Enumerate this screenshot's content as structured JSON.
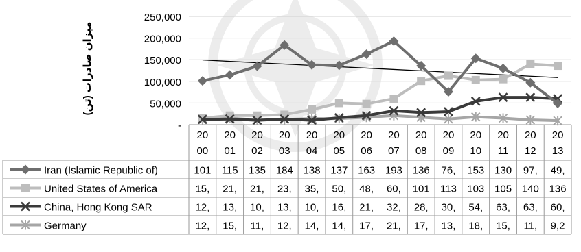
{
  "chart_data": {
    "type": "line",
    "ylabel": "میزان صادرات (تن)",
    "ylim": [
      0,
      250000
    ],
    "yticks": [
      "250,000",
      "200,000",
      "150,000",
      "100,000",
      "50,000",
      "-"
    ],
    "categories": [
      [
        "20",
        "00"
      ],
      [
        "20",
        "01"
      ],
      [
        "20",
        "02"
      ],
      [
        "20",
        "03"
      ],
      [
        "20",
        "04"
      ],
      [
        "20",
        "05"
      ],
      [
        "20",
        "06"
      ],
      [
        "20",
        "07"
      ],
      [
        "20",
        "08"
      ],
      [
        "20",
        "09"
      ],
      [
        "20",
        "10"
      ],
      [
        "20",
        "11"
      ],
      [
        "20",
        "12"
      ],
      [
        "20",
        "13"
      ]
    ],
    "years": [
      2000,
      2001,
      2002,
      2003,
      2004,
      2005,
      2006,
      2007,
      2008,
      2009,
      2010,
      2011,
      2012,
      2013
    ],
    "legend_position": "table-rows",
    "trendline": {
      "series": 0,
      "type": "linear",
      "color": "#000000"
    },
    "series": [
      {
        "name": "Iran (Islamic Republic of)",
        "color": "#6e6e6e",
        "marker": "diamond",
        "values": [
          101000,
          115000,
          135000,
          184000,
          138000,
          137000,
          163000,
          193000,
          136000,
          76000,
          153000,
          130000,
          97000,
          49000
        ],
        "labels": [
          "101",
          "115",
          "135",
          "184",
          "138",
          "137",
          "163",
          "193",
          "136",
          "76,",
          "153",
          "130",
          "97,",
          "49,"
        ]
      },
      {
        "name": "United States of America",
        "color": "#bdbdbd",
        "marker": "square",
        "values": [
          15000,
          21000,
          21000,
          23000,
          35000,
          50000,
          48000,
          60000,
          101000,
          113000,
          103000,
          105000,
          140000,
          136000
        ],
        "labels": [
          "15,",
          "21,",
          "21,",
          "23,",
          "35,",
          "50,",
          "48,",
          "60,",
          "101",
          "113",
          "103",
          "105",
          "140",
          "136"
        ]
      },
      {
        "name": "China, Hong Kong SAR",
        "color": "#3a3a3a",
        "marker": "x",
        "values": [
          12000,
          13000,
          10000,
          13000,
          10000,
          16000,
          21000,
          32000,
          28000,
          30000,
          54000,
          63000,
          63000,
          60000
        ],
        "labels": [
          "12,",
          "13,",
          "10,",
          "13,",
          "10,",
          "16,",
          "21,",
          "32,",
          "28,",
          "30,",
          "54,",
          "63,",
          "63,",
          "60,"
        ]
      },
      {
        "name": "Germany",
        "color": "#a6a6a6",
        "marker": "star",
        "values": [
          12000,
          15000,
          11000,
          12000,
          14000,
          14000,
          17000,
          21000,
          17000,
          13000,
          18000,
          15000,
          11000,
          9200
        ],
        "labels": [
          "12,",
          "15,",
          "11,",
          "12,",
          "14,",
          "14,",
          "17,",
          "21,",
          "17,",
          "13,",
          "18,",
          "15,",
          "11,",
          "9,2"
        ]
      }
    ]
  }
}
